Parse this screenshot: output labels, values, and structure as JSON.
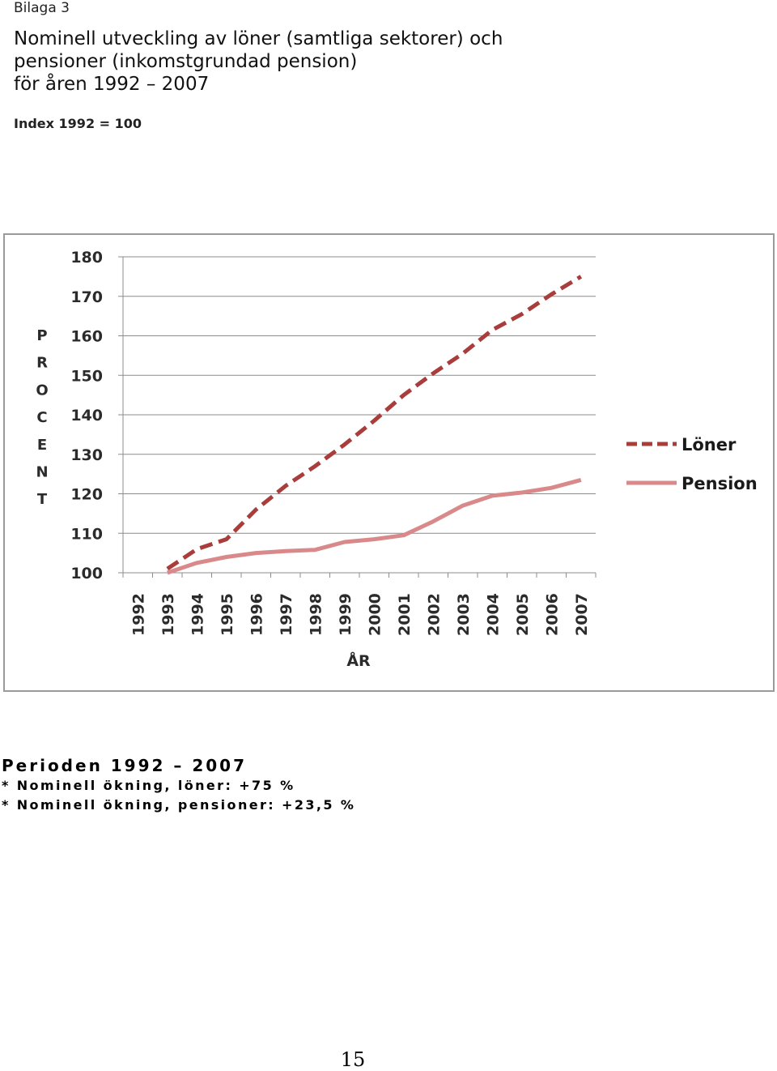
{
  "header": {
    "appendix": "Bilaga 3",
    "title_lines": [
      "Nominell utveckling av löner (samtliga sektorer) och",
      "pensioner (inkomstgrundad pension)",
      "för åren 1992 – 2007"
    ],
    "index_note": "Index 1992 = 100"
  },
  "chart_data": {
    "type": "line",
    "x": [
      "1992",
      "1993",
      "1994",
      "1995",
      "1996",
      "1997",
      "1998",
      "1999",
      "2000",
      "2001",
      "2002",
      "2003",
      "2004",
      "2005",
      "2006",
      "2007"
    ],
    "series": [
      {
        "name": "Löner",
        "color": "#a83d3b",
        "style": "dashed",
        "values": [
          null,
          101,
          106,
          108.5,
          116,
          122,
          127,
          132.5,
          138.5,
          145,
          150.5,
          155.5,
          161.5,
          165.5,
          170.5,
          175
        ]
      },
      {
        "name": "Pension",
        "color": "#d9898a",
        "style": "solid",
        "values": [
          null,
          100,
          102.5,
          104,
          105,
          105.5,
          105.8,
          107.8,
          108.5,
          109.5,
          113,
          117,
          119.5,
          120.3,
          121.5,
          123.5
        ]
      }
    ],
    "yticks": [
      100,
      110,
      120,
      130,
      140,
      150,
      160,
      170,
      180
    ],
    "ylim": [
      100,
      180
    ],
    "ylabel": "PROCENT",
    "xlabel": "ÅR",
    "title": "",
    "grid": true,
    "legend_position": "right"
  },
  "summary": {
    "heading": "Perioden 1992 – 2007",
    "lines": [
      "* Nominell ökning, löner: +75 %",
      "* Nominell ökning, pensioner: +23,5 %"
    ]
  },
  "footer": {
    "page_number": "15"
  }
}
